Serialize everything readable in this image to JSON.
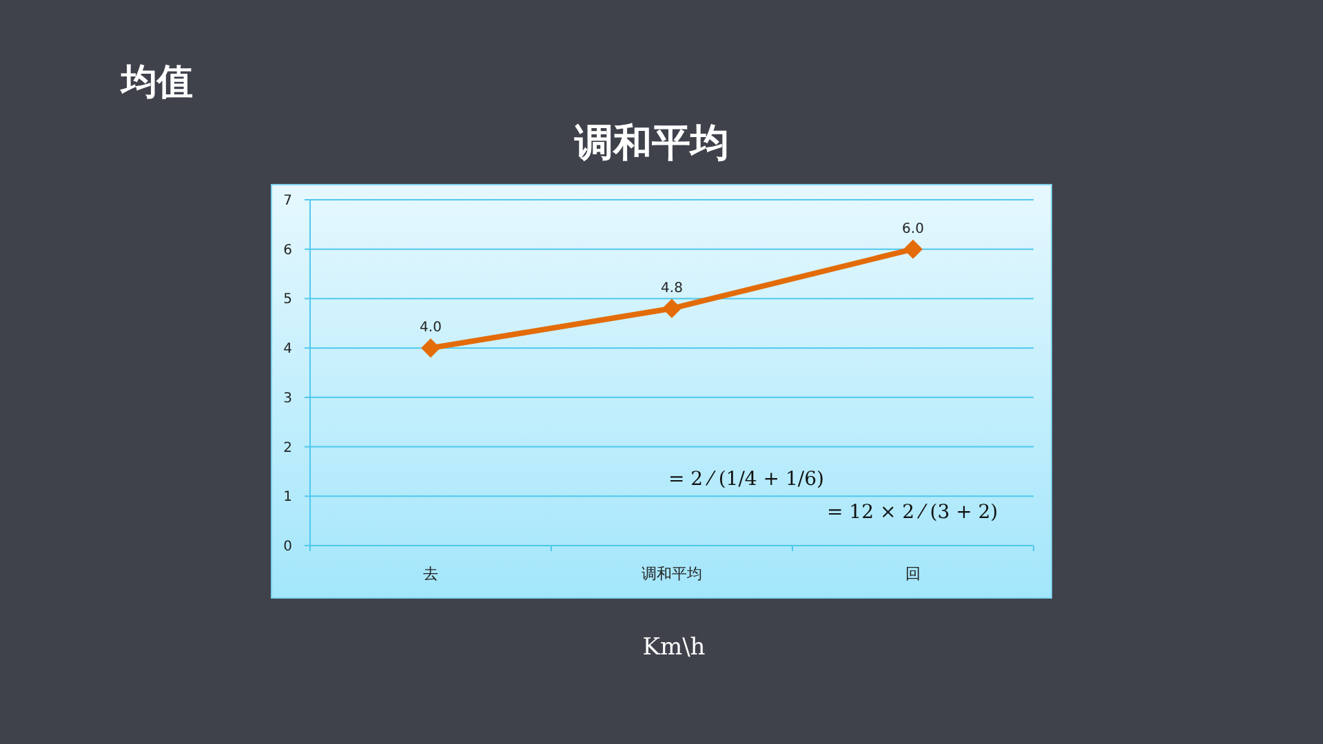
{
  "chart_data": {
    "type": "line",
    "title": "调和平均",
    "subtitle": "均值",
    "xlabel": "Km\\h",
    "categories": [
      "去",
      "调和平均",
      "回"
    ],
    "series": [
      {
        "color": "#e36c09",
        "values": [
          4.0,
          4.8,
          6.0
        ],
        "value_labels": [
          "4.0",
          "4.8",
          "6.0"
        ]
      }
    ],
    "ylim": [
      0,
      7
    ],
    "yticks": [
      0,
      1,
      2,
      3,
      4,
      5,
      6,
      7
    ],
    "grid": "y",
    "marker": "diamond",
    "line_style": "solid",
    "annotations": [
      "= 2 ⁄ (1/4 + 1/6)",
      "= 12 × 2 ⁄ (3 + 2)"
    ]
  }
}
